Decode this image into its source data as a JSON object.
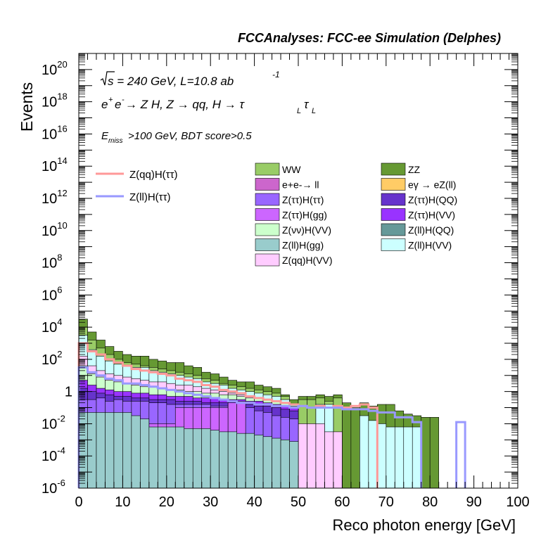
{
  "header": {
    "title": "FCCAnalyses: FCC-ee Simulation (Delphes)"
  },
  "annotations": {
    "sqrt_s": "s = 240 GeV, L=10.8 ab",
    "lumi_exp": "-1",
    "process_a": "e",
    "process_b": "e",
    "process_c": " → Z H, Z  → qq, H  → τ",
    "process_d": "τ",
    "cuts_a": "E",
    "cuts_sub": "miss",
    "cuts_b": ">100 GeV, BDT score>0.5"
  },
  "chart_data": {
    "type": "bar",
    "stacked": true,
    "xlabel": "Reco photon energy [GeV]",
    "ylabel": "Events",
    "xlim": [
      0,
      100
    ],
    "ylim": [
      1e-06,
      1e+21
    ],
    "log_y": true,
    "bin_width": 2,
    "x_ticks": [
      "0",
      "10",
      "20",
      "30",
      "40",
      "50",
      "60",
      "70",
      "80",
      "90",
      "100"
    ],
    "y_ticks": [
      {
        "base": "10",
        "exp": "-6"
      },
      {
        "base": "10",
        "exp": "-4"
      },
      {
        "base": "10",
        "exp": "-2"
      },
      {
        "base": "1",
        "exp": ""
      },
      {
        "base": "10",
        "exp": "2"
      },
      {
        "base": "10",
        "exp": "4"
      },
      {
        "base": "10",
        "exp": "6"
      },
      {
        "base": "10",
        "exp": "8"
      },
      {
        "base": "10",
        "exp": "10"
      },
      {
        "base": "10",
        "exp": "12"
      },
      {
        "base": "10",
        "exp": "14"
      },
      {
        "base": "10",
        "exp": "16"
      },
      {
        "base": "10",
        "exp": "18"
      },
      {
        "base": "10",
        "exp": "20"
      }
    ],
    "stack_total": [
      6,
      5.2,
      3.5,
      3.0,
      2.6,
      2.4,
      2.2,
      2.2,
      2.0,
      1.9,
      1.8,
      1.8,
      1.6,
      1.5,
      1.2,
      1.1,
      0.9,
      0.7,
      0.6,
      0.6,
      0.4,
      0.3,
      0.2,
      -0.2,
      -0.5,
      -0.3,
      -0.3,
      -0.2,
      -0.3,
      -0.2,
      -0.7,
      -1.0,
      -0.7,
      -0.9,
      -0.8,
      -0.8,
      -1.2,
      -1.4,
      -1.5,
      -1.6,
      -1.6,
      null,
      null,
      null,
      null,
      null,
      null,
      null,
      null,
      null
    ],
    "stack_layers": [
      {
        "name": "Z(ll)H(gg)",
        "color": "#99cccc",
        "bins": {
          "0": -1.3,
          "1": -1.3,
          "2": -1.3,
          "3": -1.3,
          "4": -1.3,
          "5": -1.3,
          "6": -1.5,
          "7": -1.7,
          "8": -2.2,
          "9": -2.2,
          "10": -2.2,
          "11": -2.2,
          "12": -2.3,
          "13": -2.3,
          "14": -2.3,
          "15": -2.4,
          "16": -2.5,
          "17": -2.5,
          "18": -2.6,
          "19": -2.6,
          "20": -2.7,
          "21": -2.8,
          "22": -2.9,
          "23": -3.0,
          "24": -3.1
        }
      },
      {
        "name": "eγ → eZ(ll)",
        "color": "#ffcc66",
        "bins": {
          "1": -2.2,
          "2": -2.2,
          "3": -2.2,
          "4": -2.2,
          "6": -2.2,
          "7": -2.2
        }
      },
      {
        "name": "Z(ττ)H(gg)",
        "color": "#cc66ff",
        "bins": {
          "8": -2.0,
          "9": -2.0,
          "10": -2.0,
          "11": -1.0,
          "12": -1.0,
          "13": -1.0,
          "14": -1.0,
          "15": -1.0,
          "16": -1.0,
          "17": -0.7,
          "18": -0.6
        }
      },
      {
        "name": "Z(ττ)H(ττ)",
        "color": "#9966ff",
        "bins": {
          "0": -0.5,
          "1": -0.5,
          "2": -0.4,
          "3": -0.6,
          "4": -0.5,
          "5": -0.6,
          "6": -0.6,
          "7": -0.6,
          "8": -0.7,
          "9": -0.7,
          "10": -0.8,
          "11": -0.8,
          "12": -0.8,
          "13": -0.8,
          "14": -0.8,
          "15": -0.9,
          "16": -0.9,
          "17": -0.9,
          "18": -1.0,
          "19": -1.0,
          "20": -1.2,
          "21": -1.3,
          "22": -1.5,
          "23": -1.6,
          "24": -1.7
        }
      },
      {
        "name": "Z(ττ)H(QQ)",
        "color": "#6633cc",
        "bins": {
          "0": 0.2,
          "1": 0.0,
          "2": -0.1,
          "3": -0.2,
          "4": -0.3,
          "5": -0.3,
          "6": -0.4,
          "7": -0.4,
          "8": -0.5,
          "9": -0.5,
          "10": -0.5,
          "11": -0.6,
          "12": -0.6,
          "13": -0.6,
          "14": -0.7,
          "15": -0.7,
          "16": -0.7,
          "17": -0.8,
          "18": -0.8,
          "19": -0.8,
          "20": -0.9,
          "21": -0.9,
          "22": -1.0,
          "23": -1.1,
          "24": -1.2
        }
      },
      {
        "name": "Z(ττ)H(VV)",
        "color": "#9933ff",
        "bins": {
          "0": 0.7,
          "1": 0.4,
          "2": 0.2,
          "3": 0.1,
          "4": 0.0,
          "5": 0.0,
          "6": -0.1,
          "7": -0.1,
          "8": -0.2,
          "9": -0.2,
          "10": -0.3,
          "11": -0.3,
          "12": -0.3,
          "13": -0.4,
          "14": -0.4,
          "15": -0.4,
          "16": -0.5,
          "17": -0.5,
          "18": -0.5,
          "19": -0.6,
          "20": -0.6,
          "21": -0.7,
          "22": -0.8,
          "23": -0.9,
          "24": -1.0
        }
      },
      {
        "name": "Z(νν)H(VV)",
        "color": "#ccffcc",
        "bins": {
          "0": 1.6,
          "1": 1.1,
          "2": 0.9,
          "3": 0.7,
          "4": 0.6,
          "5": 0.5,
          "6": 0.4,
          "7": 0.3,
          "8": 0.3,
          "9": 0.2,
          "10": 0.1,
          "11": 0.1,
          "12": 0.0,
          "13": 0.0,
          "14": -0.1,
          "15": -0.1,
          "16": -0.2,
          "17": -0.2,
          "18": -0.3,
          "19": -0.4,
          "20": -0.4,
          "21": -0.5,
          "22": -0.6,
          "23": -0.7,
          "24": -0.9
        }
      },
      {
        "name": "Z(qq)H(VV)",
        "color": "#ffccff",
        "bins": {
          "0": 2.2,
          "1": 1.6,
          "2": 1.3,
          "3": 1.1,
          "4": 1.0,
          "5": 0.9,
          "6": 0.8,
          "7": 0.7,
          "8": 0.6,
          "9": 0.6,
          "10": 0.5,
          "11": 0.4,
          "12": 0.4,
          "13": 0.3,
          "14": 0.2,
          "15": 0.1,
          "16": 0.0,
          "17": -0.1,
          "18": -0.2,
          "19": -0.3,
          "20": -0.4,
          "21": -0.5,
          "22": -0.6,
          "23": -0.8,
          "24": -1.0,
          "25": -2.0,
          "26": -2.0,
          "27": -2.0,
          "28": -2.5,
          "29": -2.5
        }
      },
      {
        "name": "Z(ll)H(VV)",
        "color": "#ccffff",
        "bins": {
          "0": 3.5,
          "1": 2.6,
          "2": 2.2,
          "3": 1.9,
          "4": 1.7,
          "5": 1.6,
          "6": 1.5,
          "7": 1.5,
          "8": 1.3,
          "9": 1.2,
          "10": 1.1,
          "11": 1.0,
          "12": 0.9,
          "13": 0.8,
          "14": 0.6,
          "15": 0.5,
          "16": 0.4,
          "17": 0.2,
          "18": 0.1,
          "19": 0.0,
          "20": -0.1,
          "21": -0.2,
          "22": -0.3,
          "23": -0.5,
          "24": -0.8,
          "27": -0.8,
          "28": -0.8,
          "32": -1.5,
          "33": -1.8,
          "34": -2.0,
          "35": -2.2,
          "36": -2.2,
          "37": -2.2,
          "38": -2.2
        }
      },
      {
        "name": "WW",
        "color": "#99cc66",
        "bins": {
          "0": 4.0,
          "1": 3.2,
          "2": 2.7,
          "3": 2.3,
          "4": 2.0,
          "5": 1.8,
          "6": 1.7,
          "7": 1.6,
          "8": 1.5,
          "9": 1.4,
          "10": 1.3,
          "11": 1.2,
          "12": 1.1,
          "13": 1.0,
          "14": 0.8,
          "15": 0.7,
          "16": 0.5,
          "17": 0.4,
          "18": 0.3,
          "19": 0.2,
          "20": 0.1,
          "21": 0.0,
          "22": -0.1,
          "23": -0.3,
          "24": -0.8,
          "25": -0.5,
          "26": -0.5,
          "27": -0.4,
          "28": -0.6,
          "29": -0.4
        }
      },
      {
        "name": "ZZ",
        "color": "#669933",
        "bins": {
          "0": 4.5,
          "1": 3.7,
          "2": 3.2,
          "3": 2.8,
          "4": 2.5,
          "5": 2.3,
          "6": 2.2,
          "7": 2.2,
          "8": 2.0,
          "9": 1.9,
          "10": 1.8,
          "11": 1.8,
          "12": 1.6,
          "13": 1.5,
          "14": 1.2,
          "15": 1.1,
          "16": 0.9,
          "17": 0.7,
          "18": 0.6,
          "19": 0.6,
          "20": 0.4,
          "21": 0.3,
          "22": 0.2,
          "23": -0.2,
          "24": -0.5,
          "25": -0.3,
          "26": -0.3,
          "27": -0.2,
          "28": -0.3,
          "29": -0.2,
          "30": -0.7,
          "31": -1.0,
          "32": -0.7,
          "33": -0.9,
          "34": -0.8,
          "35": -0.8,
          "36": -1.2,
          "37": -1.4,
          "38": -1.5,
          "39": -1.6,
          "40": -1.6
        }
      }
    ],
    "signal_series": [
      {
        "name": "Z(qq)H(ττ)",
        "color": "#ff9999",
        "log10_values": [
          3.0,
          2.5,
          2.3,
          2.0,
          1.8,
          1.6,
          1.4,
          1.3,
          1.2,
          1.1,
          1.0,
          0.8,
          0.7,
          0.6,
          0.4,
          0.3,
          0.1,
          0.0,
          -0.1,
          -0.3,
          -0.4,
          -0.5,
          -0.6,
          -0.7,
          -0.8,
          -0.9,
          -1.0,
          -0.9,
          -1.0,
          -0.9,
          -1.0,
          -0.9,
          -0.8,
          -1.0,
          null,
          null,
          null,
          null,
          null,
          null,
          null,
          null,
          null,
          null,
          null,
          null,
          null,
          null,
          null,
          null
        ]
      },
      {
        "name": "Z(ll)H(ττ)",
        "color": "#9999ff",
        "log10_values": [
          1.5,
          1.2,
          1.0,
          0.8,
          0.7,
          0.5,
          0.5,
          0.4,
          0.3,
          0.2,
          0.1,
          0.0,
          -0.1,
          -0.2,
          -0.3,
          -0.4,
          -0.5,
          -0.6,
          -0.7,
          -0.7,
          -0.8,
          -0.8,
          -0.9,
          -0.9,
          -1.0,
          -0.9,
          -1.0,
          -1.0,
          -1.0,
          -1.0,
          -1.1,
          -1.1,
          -1.1,
          -1.2,
          -1.3,
          -1.3,
          -1.6,
          -1.6,
          -1.9,
          null,
          null,
          null,
          null,
          -1.9,
          null,
          null,
          null,
          null,
          null,
          null
        ]
      }
    ],
    "legend": {
      "signals": [
        "Z(qq)H(ττ)",
        "Z(ll)H(ττ)"
      ],
      "backgrounds_left": [
        "WW",
        "e+e-→ ll",
        "Z(ττ)H(ττ)",
        "Z(ττ)H(gg)",
        "Z(νν)H(VV)",
        "Z(ll)H(gg)",
        "Z(qq)H(VV)"
      ],
      "backgrounds_left_colors": [
        "#99cc66",
        "#cc66cc",
        "#9966ff",
        "#cc66ff",
        "#ccffcc",
        "#99cccc",
        "#ffccff"
      ],
      "backgrounds_right": [
        "ZZ",
        "eγ → eZ(ll)",
        "Z(ττ)H(QQ)",
        "Z(ττ)H(VV)",
        "Z(ll)H(QQ)",
        "Z(ll)H(VV)"
      ],
      "backgrounds_right_colors": [
        "#669933",
        "#ffcc66",
        "#6633cc",
        "#9933ff",
        "#669999",
        "#ccffff"
      ]
    }
  }
}
